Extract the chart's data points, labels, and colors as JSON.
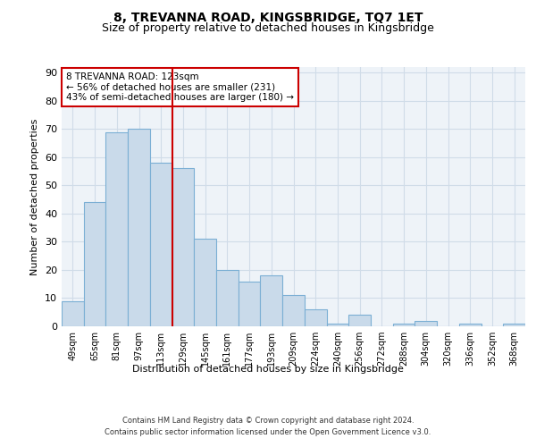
{
  "title1": "8, TREVANNA ROAD, KINGSBRIDGE, TQ7 1ET",
  "title2": "Size of property relative to detached houses in Kingsbridge",
  "xlabel": "Distribution of detached houses by size in Kingsbridge",
  "ylabel": "Number of detached properties",
  "categories": [
    "49sqm",
    "65sqm",
    "81sqm",
    "97sqm",
    "113sqm",
    "129sqm",
    "145sqm",
    "161sqm",
    "177sqm",
    "193sqm",
    "209sqm",
    "224sqm",
    "240sqm",
    "256sqm",
    "272sqm",
    "288sqm",
    "304sqm",
    "320sqm",
    "336sqm",
    "352sqm",
    "368sqm"
  ],
  "values": [
    9,
    44,
    69,
    70,
    58,
    56,
    31,
    20,
    16,
    18,
    11,
    6,
    1,
    4,
    0,
    1,
    2,
    0,
    1,
    0,
    1
  ],
  "bar_color": "#c9daea",
  "bar_edge_color": "#7bafd4",
  "grid_color": "#d0dce8",
  "background_color": "#eef3f8",
  "vline_x": 4.5,
  "vline_color": "#cc0000",
  "annotation_text": "8 TREVANNA ROAD: 123sqm\n← 56% of detached houses are smaller (231)\n43% of semi-detached houses are larger (180) →",
  "annotation_box_color": "#ffffff",
  "annotation_box_edge": "#cc0000",
  "footer1": "Contains HM Land Registry data © Crown copyright and database right 2024.",
  "footer2": "Contains public sector information licensed under the Open Government Licence v3.0.",
  "ylim": [
    0,
    92
  ],
  "yticks": [
    0,
    10,
    20,
    30,
    40,
    50,
    60,
    70,
    80,
    90
  ],
  "title1_fontsize": 10,
  "title2_fontsize": 9,
  "ylabel_fontsize": 8,
  "xlabel_fontsize": 8,
  "tick_fontsize": 8,
  "xtick_fontsize": 7,
  "footer_fontsize": 6
}
